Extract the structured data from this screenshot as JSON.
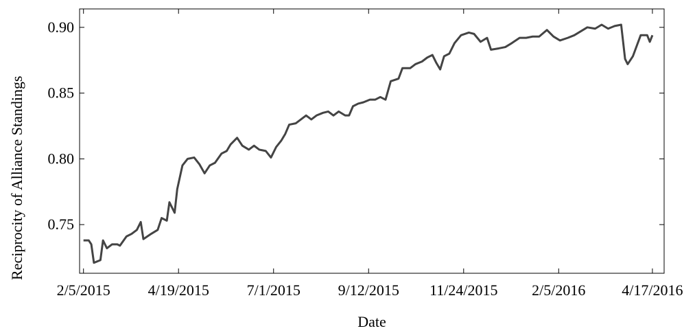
{
  "chart_data": {
    "type": "line",
    "xlabel": "Date",
    "ylabel": "Reciprocity of Alliance Standings",
    "color": "#444444",
    "grid": false,
    "xlim": [
      "2/2/2015",
      "4/26/2016"
    ],
    "xticks": [
      "2/5/2015",
      "4/19/2015",
      "7/1/2015",
      "9/12/2015",
      "11/24/2015",
      "2/5/2016",
      "4/17/2016"
    ],
    "ylim": [
      0.713,
      0.914
    ],
    "yticks": [
      {
        "value": 0.75,
        "label": "0.75"
      },
      {
        "value": 0.8,
        "label": "0.80"
      },
      {
        "value": 0.85,
        "label": "0.85"
      },
      {
        "value": 0.9,
        "label": "0.90"
      }
    ],
    "x": [
      "2/5/2015",
      "2/9/2015",
      "2/11/2015",
      "2/13/2015",
      "2/18/2015",
      "2/20/2015",
      "2/23/2015",
      "2/27/2015",
      "3/3/2015",
      "3/5/2015",
      "3/10/2015",
      "3/14/2015",
      "3/18/2015",
      "3/21/2015",
      "3/23/2015",
      "3/29/2015",
      "4/3/2015",
      "4/6/2015",
      "4/10/2015",
      "4/12/2015",
      "4/16/2015",
      "4/18/2015",
      "4/22/2015",
      "4/26/2015",
      "5/1/2015",
      "5/5/2015",
      "5/9/2015",
      "5/13/2015",
      "5/17/2015",
      "5/22/2015",
      "5/26/2015",
      "5/29/2015",
      "6/3/2015",
      "6/7/2015",
      "6/12/2015",
      "6/16/2015",
      "6/20/2015",
      "6/25/2015",
      "6/29/2015",
      "7/3/2015",
      "7/7/2015",
      "7/10/2015",
      "7/13/2015",
      "7/18/2015",
      "7/22/2015",
      "7/26/2015",
      "7/30/2015",
      "8/3/2015",
      "8/8/2015",
      "8/12/2015",
      "8/16/2015",
      "8/20/2015",
      "8/25/2015",
      "8/28/2015",
      "8/31/2015",
      "9/4/2015",
      "9/8/2015",
      "9/13/2015",
      "9/17/2015",
      "9/21/2015",
      "9/25/2015",
      "9/29/2015",
      "10/5/2015",
      "10/8/2015",
      "10/14/2015",
      "10/18/2015",
      "10/23/2015",
      "10/27/2015",
      "10/31/2015",
      "11/3/2015",
      "11/6/2015",
      "11/9/2015",
      "11/13/2015",
      "11/17/2015",
      "11/22/2015",
      "11/28/2015",
      "12/2/2015",
      "12/7/2015",
      "12/12/2015",
      "12/15/2015",
      "12/21/2015",
      "12/26/2015",
      "12/31/2015",
      "1/6/2016",
      "1/11/2016",
      "1/16/2016",
      "1/21/2016",
      "1/27/2016",
      "2/1/2016",
      "2/6/2016",
      "2/12/2016",
      "2/17/2016",
      "2/22/2016",
      "2/27/2016",
      "3/4/2016",
      "3/9/2016",
      "3/14/2016",
      "3/19/2016",
      "3/24/2016",
      "3/27/2016",
      "3/29/2016",
      "4/2/2016",
      "4/5/2016",
      "4/8/2016",
      "4/13/2016",
      "4/15/2016",
      "4/17/2016"
    ],
    "values": [
      0.738,
      0.738,
      0.735,
      0.721,
      0.723,
      0.738,
      0.732,
      0.735,
      0.735,
      0.734,
      0.741,
      0.743,
      0.746,
      0.752,
      0.739,
      0.743,
      0.746,
      0.755,
      0.753,
      0.767,
      0.759,
      0.777,
      0.795,
      0.8,
      0.801,
      0.796,
      0.789,
      0.795,
      0.797,
      0.804,
      0.806,
      0.811,
      0.816,
      0.81,
      0.807,
      0.81,
      0.807,
      0.806,
      0.801,
      0.809,
      0.814,
      0.819,
      0.826,
      0.827,
      0.83,
      0.833,
      0.83,
      0.833,
      0.835,
      0.836,
      0.833,
      0.836,
      0.833,
      0.833,
      0.84,
      0.842,
      0.843,
      0.845,
      0.845,
      0.847,
      0.845,
      0.859,
      0.861,
      0.869,
      0.869,
      0.872,
      0.874,
      0.877,
      0.879,
      0.873,
      0.868,
      0.878,
      0.88,
      0.888,
      0.894,
      0.896,
      0.895,
      0.889,
      0.892,
      0.883,
      0.884,
      0.885,
      0.888,
      0.892,
      0.892,
      0.893,
      0.893,
      0.898,
      0.893,
      0.89,
      0.892,
      0.894,
      0.897,
      0.9,
      0.899,
      0.902,
      0.899,
      0.901,
      0.902,
      0.876,
      0.872,
      0.878,
      0.886,
      0.894,
      0.894,
      0.889,
      0.894
    ]
  }
}
